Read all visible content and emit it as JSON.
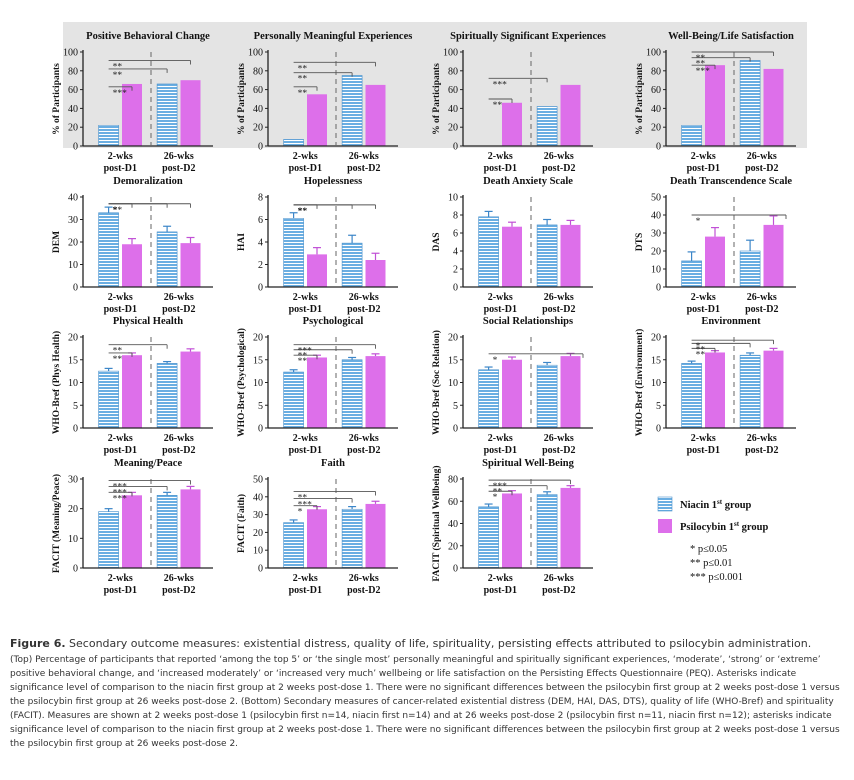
{
  "chart_data": [
    {
      "type": "bar",
      "title": "Positive Behavioral Change",
      "ylabel": "% of Participants",
      "ylim": [
        0,
        100
      ],
      "yticks": [
        0,
        20,
        40,
        60,
        80,
        100
      ],
      "categories": [
        "2-wks\npost-D1",
        "26-wks\npost-D2"
      ],
      "series": [
        {
          "name": "Niacin 1st group",
          "values": [
            22,
            66
          ]
        },
        {
          "name": "Psilocybin 1st group",
          "values": [
            66,
            70
          ]
        }
      ],
      "error": null,
      "sig": [
        {
          "label": "***",
          "level": 63
        },
        {
          "label": "**",
          "level": 82
        },
        {
          "label": "**",
          "level": 91
        }
      ]
    },
    {
      "type": "bar",
      "title": "Personally Meaningful Experiences",
      "ylabel": "% of Participants",
      "ylim": [
        0,
        100
      ],
      "yticks": [
        0,
        20,
        40,
        60,
        80,
        100
      ],
      "categories": [
        "2-wks\npost-D1",
        "26-wks\npost-D2"
      ],
      "series": [
        {
          "name": "Niacin 1st group",
          "values": [
            7,
            75
          ]
        },
        {
          "name": "Psilocybin 1st group",
          "values": [
            55,
            65
          ]
        }
      ],
      "error": null,
      "sig": [
        {
          "label": "**",
          "level": 63
        },
        {
          "label": "**",
          "level": 78
        },
        {
          "label": "**",
          "level": 89
        }
      ]
    },
    {
      "type": "bar",
      "title": "Spiritually Significant Experiences",
      "ylabel": "% of Participants",
      "ylim": [
        0,
        100
      ],
      "yticks": [
        0,
        20,
        40,
        60,
        80,
        100
      ],
      "categories": [
        "2-wks\npost-D1",
        "26-wks\npost-D2"
      ],
      "series": [
        {
          "name": "Niacin 1st group",
          "values": [
            0,
            42
          ]
        },
        {
          "name": "Psilocybin 1st group",
          "values": [
            46,
            65
          ]
        }
      ],
      "error": null,
      "sig": [
        {
          "label": "**",
          "level": 50
        },
        {
          "label": "***",
          "level": 72
        }
      ]
    },
    {
      "type": "bar",
      "title": "Well-Being/Life Satisfaction",
      "ylabel": "% of Participants",
      "ylim": [
        0,
        100
      ],
      "yticks": [
        0,
        20,
        40,
        60,
        80,
        100
      ],
      "categories": [
        "2-wks\npost-D1",
        "26-wks\npost-D2"
      ],
      "series": [
        {
          "name": "Niacin 1st group",
          "values": [
            22,
            91
          ]
        },
        {
          "name": "Psilocybin 1st group",
          "values": [
            86,
            82
          ]
        }
      ],
      "error": null,
      "sig": [
        {
          "label": "***",
          "level": 86
        },
        {
          "label": "**",
          "level": 94
        },
        {
          "label": "**",
          "level": 100
        }
      ]
    },
    {
      "type": "bar",
      "title": "Demoralization",
      "ylabel": "DEM",
      "ylim": [
        0,
        40
      ],
      "yticks": [
        0,
        10,
        20,
        30,
        40
      ],
      "categories": [
        "2-wks\npost-D1",
        "26-wks\npost-D2"
      ],
      "series": [
        {
          "name": "Niacin 1st group",
          "values": [
            33,
            24.5
          ]
        },
        {
          "name": "Psilocybin 1st group",
          "values": [
            19,
            19.5
          ]
        }
      ],
      "error": [
        [
          2.5,
          2.5
        ],
        [
          2.5,
          2.5
        ]
      ],
      "sig": [
        {
          "label": "*",
          "level": 37
        },
        {
          "label": "*",
          "level": 37
        },
        {
          "label": "**",
          "level": 37
        }
      ]
    },
    {
      "type": "bar",
      "title": "Hopelessness",
      "ylabel": "HAI",
      "ylim": [
        0,
        8
      ],
      "yticks": [
        0,
        2,
        4,
        6,
        8
      ],
      "categories": [
        "2-wks\npost-D1",
        "26-wks\npost-D2"
      ],
      "series": [
        {
          "name": "Niacin 1st group",
          "values": [
            6.1,
            3.9
          ]
        },
        {
          "name": "Psilocybin 1st group",
          "values": [
            2.9,
            2.4
          ]
        }
      ],
      "error": [
        [
          0.5,
          0.7
        ],
        [
          0.6,
          0.6
        ]
      ],
      "sig": [
        {
          "label": "**",
          "level": 7.3
        },
        {
          "label": "**",
          "level": 7.3
        },
        {
          "label": "**",
          "level": 7.3
        }
      ]
    },
    {
      "type": "bar",
      "title": "Death Anxiety Scale",
      "ylabel": "DAS",
      "ylim": [
        0,
        10
      ],
      "yticks": [
        0,
        2,
        4,
        6,
        8,
        10
      ],
      "categories": [
        "2-wks\npost-D1",
        "26-wks\npost-D2"
      ],
      "series": [
        {
          "name": "Niacin 1st group",
          "values": [
            7.8,
            6.9
          ]
        },
        {
          "name": "Psilocybin 1st group",
          "values": [
            6.7,
            6.9
          ]
        }
      ],
      "error": [
        [
          0.6,
          0.6
        ],
        [
          0.5,
          0.5
        ]
      ],
      "sig": []
    },
    {
      "type": "bar",
      "title": "Death Transcendence Scale",
      "ylabel": "DTS",
      "ylim": [
        0,
        50
      ],
      "yticks": [
        0,
        10,
        20,
        30,
        40,
        50
      ],
      "categories": [
        "2-wks\npost-D1",
        "26-wks\npost-D2"
      ],
      "series": [
        {
          "name": "Niacin 1st group",
          "values": [
            14.5,
            20
          ]
        },
        {
          "name": "Psilocybin 1st group",
          "values": [
            28,
            34.5
          ]
        }
      ],
      "error": [
        [
          5,
          6
        ],
        [
          5,
          5
        ]
      ],
      "sig": [
        {
          "label": "*",
          "level": 40
        }
      ]
    },
    {
      "type": "bar",
      "title": "Physical Health",
      "ylabel": "WHO-Bref (Phys Health)",
      "ylim": [
        0,
        20
      ],
      "yticks": [
        0,
        5,
        10,
        15,
        20
      ],
      "categories": [
        "2-wks\npost-D1",
        "26-wks\npost-D2"
      ],
      "series": [
        {
          "name": "Niacin 1st group",
          "values": [
            12.5,
            14.2
          ]
        },
        {
          "name": "Psilocybin 1st group",
          "values": [
            16,
            16.8
          ]
        }
      ],
      "error": [
        [
          0.6,
          0.4
        ],
        [
          0.5,
          0.6
        ]
      ],
      "sig": [
        {
          "label": "**",
          "level": 16.5
        },
        {
          "label": "**",
          "level": 18.3
        }
      ]
    },
    {
      "type": "bar",
      "title": "Psychological",
      "ylabel": "WHO-Bref (Psychological)",
      "ylim": [
        0,
        20
      ],
      "yticks": [
        0,
        5,
        10,
        15,
        20
      ],
      "categories": [
        "2-wks\npost-D1",
        "26-wks\npost-D2"
      ],
      "series": [
        {
          "name": "Niacin 1st group",
          "values": [
            12.3,
            15
          ]
        },
        {
          "name": "Psilocybin 1st group",
          "values": [
            15.5,
            15.8
          ]
        }
      ],
      "error": [
        [
          0.5,
          0.5
        ],
        [
          0.5,
          0.5
        ]
      ],
      "sig": [
        {
          "label": "**",
          "level": 16
        },
        {
          "label": "**",
          "level": 17.2
        },
        {
          "label": "***",
          "level": 18.3
        }
      ]
    },
    {
      "type": "bar",
      "title": "Social Relationships",
      "ylabel": "WHO-Bref (Soc Relation)",
      "ylim": [
        0,
        20
      ],
      "yticks": [
        0,
        5,
        10,
        15,
        20
      ],
      "categories": [
        "2-wks\npost-D1",
        "26-wks\npost-D2"
      ],
      "series": [
        {
          "name": "Niacin 1st group",
          "values": [
            12.8,
            13.8
          ]
        },
        {
          "name": "Psilocybin 1st group",
          "values": [
            15,
            15.8
          ]
        }
      ],
      "error": [
        [
          0.6,
          0.6
        ],
        [
          0.6,
          0.6
        ]
      ],
      "sig": [
        {
          "label": "*",
          "level": 16.3
        }
      ]
    },
    {
      "type": "bar",
      "title": "Environment",
      "ylabel": "WHO-Bref (Environment)",
      "ylim": [
        0,
        20
      ],
      "yticks": [
        0,
        5,
        10,
        15,
        20
      ],
      "categories": [
        "2-wks\npost-D1",
        "26-wks\npost-D2"
      ],
      "series": [
        {
          "name": "Niacin 1st group",
          "values": [
            14.2,
            16
          ]
        },
        {
          "name": "Psilocybin 1st group",
          "values": [
            16.6,
            17
          ]
        }
      ],
      "error": [
        [
          0.5,
          0.5
        ],
        [
          0.4,
          0.5
        ]
      ],
      "sig": [
        {
          "label": "**",
          "level": 17.5
        },
        {
          "label": "**",
          "level": 18.6
        },
        {
          "label": "*",
          "level": 19.3
        }
      ]
    },
    {
      "type": "bar",
      "title": "Meaning/Peace",
      "ylabel": "FACIT (Meaning/Peace)",
      "ylim": [
        0,
        30
      ],
      "yticks": [
        0,
        10,
        20,
        30
      ],
      "categories": [
        "2-wks\npost-D1",
        "26-wks\npost-D2"
      ],
      "series": [
        {
          "name": "Niacin 1st group",
          "values": [
            19,
            24.5
          ]
        },
        {
          "name": "Psilocybin 1st group",
          "values": [
            24.5,
            26.5
          ]
        }
      ],
      "error": [
        [
          1,
          1
        ],
        [
          1,
          1
        ]
      ],
      "sig": [
        {
          "label": "***",
          "level": 25.5
        },
        {
          "label": "***",
          "level": 27.5
        },
        {
          "label": "***",
          "level": 29.5
        }
      ]
    },
    {
      "type": "bar",
      "title": "Faith",
      "ylabel": "FACIT (Faith)",
      "ylim": [
        0,
        50
      ],
      "yticks": [
        0,
        10,
        20,
        30,
        40,
        50
      ],
      "categories": [
        "2-wks\npost-D1",
        "26-wks\npost-D2"
      ],
      "series": [
        {
          "name": "Niacin 1st group",
          "values": [
            25.5,
            33
          ]
        },
        {
          "name": "Psilocybin 1st group",
          "values": [
            33,
            36
          ]
        }
      ],
      "error": [
        [
          1.5,
          1.5
        ],
        [
          1.5,
          1.5
        ]
      ],
      "sig": [
        {
          "label": "*",
          "level": 35
        },
        {
          "label": "***",
          "level": 39
        },
        {
          "label": "**",
          "level": 43
        }
      ]
    },
    {
      "type": "bar",
      "title": "Spiritual Well-Being",
      "ylabel": "FACIT (Spiritual Wellbeing)",
      "ylim": [
        0,
        80
      ],
      "yticks": [
        0,
        20,
        40,
        60,
        80
      ],
      "categories": [
        "2-wks\npost-D1",
        "26-wks\npost-D2"
      ],
      "series": [
        {
          "name": "Niacin 1st group",
          "values": [
            55,
            66
          ]
        },
        {
          "name": "Psilocybin 1st group",
          "values": [
            67,
            72
          ]
        }
      ],
      "error": [
        [
          2.5,
          2.5
        ],
        [
          2.5,
          2
        ]
      ],
      "sig": [
        {
          "label": "*",
          "level": 69
        },
        {
          "label": "**",
          "level": 74
        },
        {
          "label": "***",
          "level": 79
        }
      ]
    }
  ],
  "legend": [
    {
      "prefix": "Niacin 1",
      "sup": "st",
      "suffix": " group"
    },
    {
      "prefix": "Psilocybin 1",
      "sup": "st",
      "suffix": " group"
    }
  ],
  "significance_key": [
    "* p≤0.05",
    "** p≤0.01",
    "*** p≤0.001"
  ],
  "colors": {
    "niacin": "#6aaee2",
    "niacin_stripe": "#ffffff",
    "psilocybin": "#dd6fea",
    "top_panel_bg": "#e4e4e4",
    "axis": "#222222",
    "sig_line": "#555555"
  },
  "caption": {
    "label": "Figure 6.",
    "title": " Secondary outcome measures: existential distress, quality of life, spirituality, persisting effects attributed to psilocybin administration.",
    "body": "(Top) Percentage of participants that reported ‘among the top 5’ or ‘the single most’ personally meaningful and spiritually significant experiences, ‘moderate’, ‘strong’ or ‘extreme’ positive behavioral change, and ‘increased moderately’ or ‘increased very much’ wellbeing or life satisfaction on the Persisting Effects Questionnaire (PEQ). Asterisks indicate significance level of comparison to the niacin first group at 2 weeks post-dose 1. There were no significant differences between the psilocybin first group at 2 weeks post-dose 1 versus the psilocybin first group at 26 weeks post-dose 2. (Bottom) Secondary measures of cancer-related existential distress (DEM, HAI, DAS, DTS), quality of life (WHO-Bref) and spirituality (FACIT). Measures are shown at 2 weeks post-dose 1 (psilocybin first n=14, niacin first n=14) and at 26 weeks post-dose 2 (psilocybin first n=11, niacin first n=12); asterisks indicate significance level of comparison to the niacin first group at 2 weeks post-dose 1. There were no significant differences between the psilocybin first group at 2 weeks post-dose 1 versus the psilocybin first group at 26 weeks post-dose 2."
  }
}
